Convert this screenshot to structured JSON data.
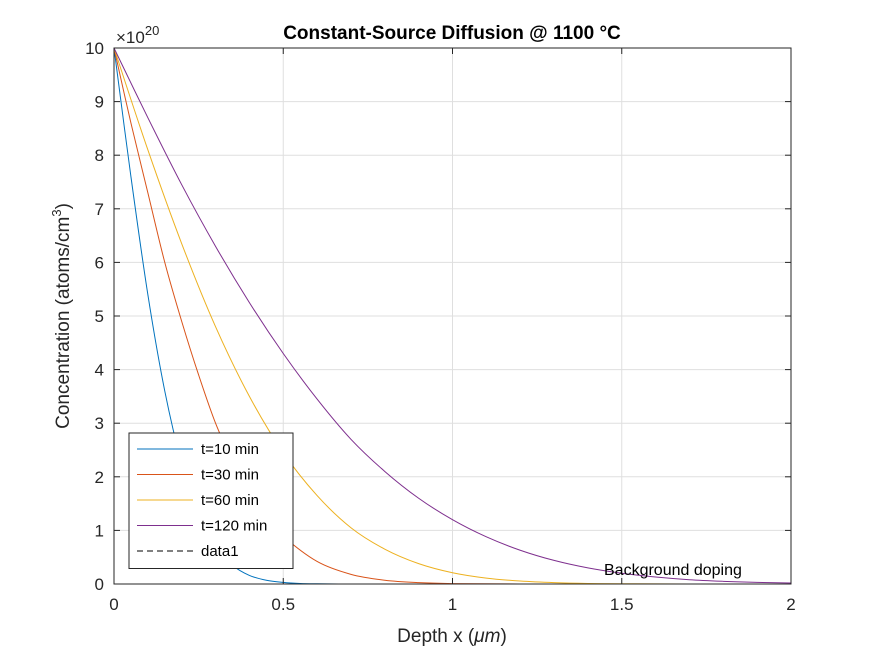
{
  "chart_data": {
    "type": "line",
    "title": "Constant-Source Diffusion @ 1100 °C",
    "xlabel": "Depth x (",
    "xlabel_unit": "μm",
    "xlabel_close": ")",
    "ylabel": "Concentration (atoms/cm",
    "ylabel_sup": "3",
    "ylabel_close": ")",
    "y_exponent_base": "×10",
    "y_exponent": "20",
    "xlim": [
      0,
      2
    ],
    "ylim": [
      0,
      10
    ],
    "xticks": [
      0,
      0.5,
      1,
      1.5,
      2
    ],
    "xtick_labels": [
      "0",
      "0.5",
      "1",
      "1.5",
      "2"
    ],
    "yticks": [
      0,
      1,
      2,
      3,
      4,
      5,
      6,
      7,
      8,
      9,
      10
    ],
    "ytick_labels": [
      "0",
      "1",
      "2",
      "3",
      "4",
      "5",
      "6",
      "7",
      "8",
      "9",
      "10"
    ],
    "grid": true,
    "legend_position": "bottom-left",
    "annotation": "Background doping",
    "series": [
      {
        "name": "t=10 min",
        "color": "#0072BD",
        "x": [
          0,
          0.05,
          0.1,
          0.15,
          0.2,
          0.25,
          0.3,
          0.35,
          0.4,
          0.45,
          0.5,
          0.55,
          0.6,
          0.7,
          0.8,
          1.0,
          1.5,
          2.0
        ],
        "y": [
          10,
          7.6,
          5.4,
          3.6,
          2.25,
          1.3,
          0.7,
          0.35,
          0.16,
          0.07,
          0.03,
          0.01,
          0.004,
          0.0,
          0.0,
          0.0,
          0.0,
          0.0
        ]
      },
      {
        "name": "t=30 min",
        "color": "#D95319",
        "x": [
          0,
          0.05,
          0.1,
          0.15,
          0.2,
          0.25,
          0.3,
          0.35,
          0.4,
          0.45,
          0.5,
          0.6,
          0.7,
          0.8,
          0.9,
          1.0,
          1.2,
          1.5,
          2.0
        ],
        "y": [
          10,
          8.6,
          7.3,
          6.0,
          4.9,
          3.9,
          3.0,
          2.3,
          1.7,
          1.25,
          0.89,
          0.42,
          0.18,
          0.07,
          0.025,
          0.008,
          0.001,
          0.0,
          0.0
        ]
      },
      {
        "name": "t=60 min",
        "color": "#EDB120",
        "x": [
          0,
          0.1,
          0.2,
          0.3,
          0.4,
          0.5,
          0.6,
          0.7,
          0.8,
          0.9,
          1.0,
          1.1,
          1.2,
          1.3,
          1.4,
          1.5,
          1.7,
          2.0
        ],
        "y": [
          10,
          8.1,
          6.35,
          4.8,
          3.5,
          2.45,
          1.65,
          1.05,
          0.65,
          0.38,
          0.21,
          0.11,
          0.055,
          0.025,
          0.01,
          0.005,
          0.001,
          0.0
        ]
      },
      {
        "name": "t=120 min",
        "color": "#7E2F8E",
        "x": [
          0,
          0.1,
          0.2,
          0.3,
          0.4,
          0.5,
          0.6,
          0.7,
          0.8,
          0.9,
          1.0,
          1.1,
          1.2,
          1.3,
          1.4,
          1.5,
          1.6,
          1.7,
          1.8,
          1.9,
          2.0
        ],
        "y": [
          10,
          8.7,
          7.45,
          6.3,
          5.25,
          4.3,
          3.45,
          2.7,
          2.1,
          1.6,
          1.2,
          0.88,
          0.63,
          0.44,
          0.3,
          0.2,
          0.13,
          0.08,
          0.05,
          0.03,
          0.018
        ]
      },
      {
        "name": "data1",
        "color": "#000000",
        "dashed": true,
        "x": [
          0,
          2
        ],
        "y": [
          0.0001,
          0.0001
        ]
      }
    ]
  }
}
